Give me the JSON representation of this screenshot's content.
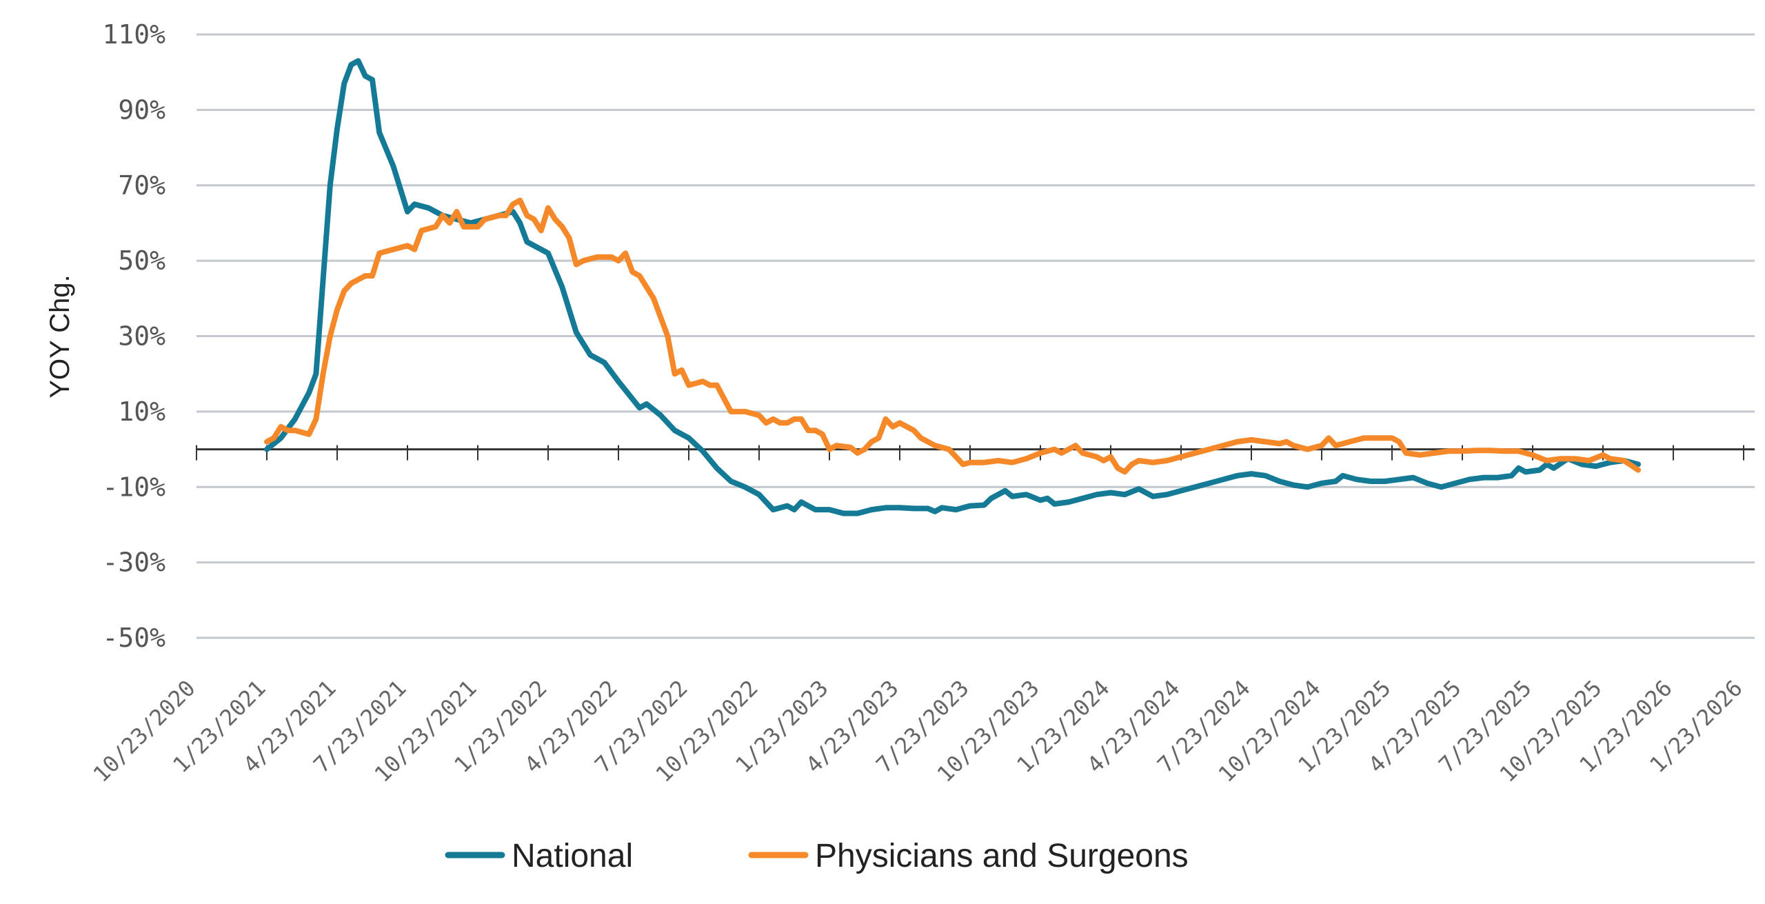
{
  "chart_data": {
    "type": "line",
    "ylabel": "YOY Chg.",
    "ylim": [
      -50,
      110
    ],
    "y_ticks": [
      110,
      90,
      70,
      50,
      30,
      10,
      -10,
      -30,
      -50
    ],
    "y_tick_labels": [
      "110%",
      "90%",
      "70%",
      "50%",
      "30%",
      "10%",
      "-10%",
      "-30%",
      "-50%"
    ],
    "x_tick_labels": [
      "10/23/2020",
      "1/23/2021",
      "4/23/2021",
      "7/23/2021",
      "10/23/2021",
      "1/23/2022",
      "4/23/2022",
      "7/23/2022",
      "10/23/2022",
      "1/23/2023",
      "4/23/2023",
      "7/23/2023",
      "10/23/2023",
      "1/23/2024",
      "4/23/2024",
      "7/23/2024",
      "10/23/2024",
      "1/23/2025",
      "4/23/2025",
      "7/23/2025",
      "10/23/2025",
      "1/23/2026",
      "1/23/2026"
    ],
    "zero_line": 0,
    "grid": true,
    "legend_position": "bottom",
    "series": [
      {
        "name": "National",
        "color": "#157a96",
        "values": [
          [
            1.0,
            0
          ],
          [
            1.2,
            3
          ],
          [
            1.4,
            8
          ],
          [
            1.6,
            15
          ],
          [
            1.7,
            20
          ],
          [
            1.8,
            45
          ],
          [
            1.9,
            70
          ],
          [
            2.0,
            85
          ],
          [
            2.1,
            97
          ],
          [
            2.2,
            102
          ],
          [
            2.3,
            103
          ],
          [
            2.4,
            99
          ],
          [
            2.5,
            98
          ],
          [
            2.6,
            84
          ],
          [
            2.8,
            75
          ],
          [
            3.0,
            63
          ],
          [
            3.1,
            65
          ],
          [
            3.3,
            64
          ],
          [
            3.5,
            62
          ],
          [
            3.7,
            61
          ],
          [
            3.9,
            60
          ],
          [
            4.1,
            61
          ],
          [
            4.3,
            62
          ],
          [
            4.5,
            63
          ],
          [
            4.6,
            60
          ],
          [
            4.7,
            55
          ],
          [
            4.9,
            53
          ],
          [
            5.0,
            52
          ],
          [
            5.2,
            43
          ],
          [
            5.4,
            31
          ],
          [
            5.6,
            25
          ],
          [
            5.8,
            23
          ],
          [
            6.0,
            18
          ],
          [
            6.3,
            11
          ],
          [
            6.4,
            12
          ],
          [
            6.6,
            9
          ],
          [
            6.8,
            5
          ],
          [
            7.0,
            3
          ],
          [
            7.2,
            -0.5
          ],
          [
            7.4,
            -5
          ],
          [
            7.6,
            -8.5
          ],
          [
            7.8,
            -10
          ],
          [
            8.0,
            -12
          ],
          [
            8.2,
            -16
          ],
          [
            8.4,
            -15
          ],
          [
            8.5,
            -16
          ],
          [
            8.6,
            -14
          ],
          [
            8.8,
            -16
          ],
          [
            9.0,
            -16
          ],
          [
            9.2,
            -17
          ],
          [
            9.4,
            -17
          ],
          [
            9.6,
            -16
          ],
          [
            9.8,
            -15.5
          ],
          [
            10.0,
            -15.5
          ],
          [
            10.2,
            -15.7
          ],
          [
            10.4,
            -15.7
          ],
          [
            10.5,
            -16.5
          ],
          [
            10.6,
            -15.5
          ],
          [
            10.8,
            -16
          ],
          [
            11.0,
            -15
          ],
          [
            11.2,
            -14.8
          ],
          [
            11.3,
            -13
          ],
          [
            11.5,
            -11
          ],
          [
            11.6,
            -12.5
          ],
          [
            11.8,
            -12
          ],
          [
            12.0,
            -13.5
          ],
          [
            12.1,
            -13
          ],
          [
            12.2,
            -14.5
          ],
          [
            12.4,
            -14
          ],
          [
            12.6,
            -13
          ],
          [
            12.8,
            -12
          ],
          [
            13.0,
            -11.5
          ],
          [
            13.2,
            -12
          ],
          [
            13.4,
            -10.5
          ],
          [
            13.6,
            -12.5
          ],
          [
            13.8,
            -12
          ],
          [
            14.0,
            -11
          ],
          [
            14.2,
            -10
          ],
          [
            14.4,
            -9
          ],
          [
            14.6,
            -8
          ],
          [
            14.8,
            -7
          ],
          [
            15.0,
            -6.5
          ],
          [
            15.2,
            -7
          ],
          [
            15.4,
            -8.5
          ],
          [
            15.6,
            -9.5
          ],
          [
            15.8,
            -10
          ],
          [
            16.0,
            -9
          ],
          [
            16.2,
            -8.5
          ],
          [
            16.3,
            -7
          ],
          [
            16.5,
            -8
          ],
          [
            16.7,
            -8.5
          ],
          [
            16.9,
            -8.5
          ],
          [
            17.1,
            -8
          ],
          [
            17.3,
            -7.5
          ],
          [
            17.5,
            -9
          ],
          [
            17.7,
            -10
          ],
          [
            17.9,
            -9
          ],
          [
            18.1,
            -8
          ],
          [
            18.3,
            -7.5
          ],
          [
            18.5,
            -7.5
          ],
          [
            18.7,
            -7
          ],
          [
            18.8,
            -5
          ],
          [
            18.9,
            -6
          ],
          [
            19.1,
            -5.5
          ],
          [
            19.2,
            -4
          ],
          [
            19.3,
            -5
          ],
          [
            19.5,
            -2.5
          ],
          [
            19.7,
            -4
          ],
          [
            19.9,
            -4.5
          ],
          [
            20.1,
            -3.5
          ],
          [
            20.3,
            -3
          ],
          [
            20.5,
            -4
          ]
        ]
      },
      {
        "name": "Physicians and Surgeons",
        "color": "#f5892a",
        "values": [
          [
            1.0,
            2
          ],
          [
            1.1,
            3
          ],
          [
            1.2,
            6
          ],
          [
            1.3,
            5
          ],
          [
            1.4,
            5
          ],
          [
            1.5,
            4.5
          ],
          [
            1.6,
            4
          ],
          [
            1.7,
            8
          ],
          [
            1.8,
            20
          ],
          [
            1.9,
            30
          ],
          [
            2.0,
            37
          ],
          [
            2.1,
            42
          ],
          [
            2.2,
            44
          ],
          [
            2.3,
            45
          ],
          [
            2.4,
            46
          ],
          [
            2.5,
            46
          ],
          [
            2.6,
            52
          ],
          [
            2.8,
            53
          ],
          [
            3.0,
            54
          ],
          [
            3.1,
            53
          ],
          [
            3.2,
            58
          ],
          [
            3.4,
            59
          ],
          [
            3.5,
            62
          ],
          [
            3.6,
            60
          ],
          [
            3.7,
            63
          ],
          [
            3.8,
            59
          ],
          [
            4.0,
            59
          ],
          [
            4.1,
            61
          ],
          [
            4.3,
            62
          ],
          [
            4.4,
            62
          ],
          [
            4.5,
            65
          ],
          [
            4.6,
            66
          ],
          [
            4.7,
            62
          ],
          [
            4.8,
            61
          ],
          [
            4.9,
            58
          ],
          [
            5.0,
            64
          ],
          [
            5.1,
            61
          ],
          [
            5.2,
            59
          ],
          [
            5.3,
            56
          ],
          [
            5.4,
            49
          ],
          [
            5.5,
            50
          ],
          [
            5.7,
            51
          ],
          [
            5.9,
            51
          ],
          [
            6.0,
            50
          ],
          [
            6.1,
            52
          ],
          [
            6.2,
            47
          ],
          [
            6.3,
            46
          ],
          [
            6.5,
            40
          ],
          [
            6.7,
            30
          ],
          [
            6.8,
            20
          ],
          [
            6.9,
            21
          ],
          [
            7.0,
            17
          ],
          [
            7.2,
            18
          ],
          [
            7.3,
            17
          ],
          [
            7.4,
            17
          ],
          [
            7.6,
            10
          ],
          [
            7.8,
            10
          ],
          [
            8.0,
            9
          ],
          [
            8.1,
            7
          ],
          [
            8.2,
            8
          ],
          [
            8.3,
            7
          ],
          [
            8.4,
            7
          ],
          [
            8.5,
            8
          ],
          [
            8.6,
            8
          ],
          [
            8.7,
            5
          ],
          [
            8.8,
            5
          ],
          [
            8.9,
            4
          ],
          [
            9.0,
            0
          ],
          [
            9.1,
            1
          ],
          [
            9.3,
            0.5
          ],
          [
            9.4,
            -1
          ],
          [
            9.5,
            0
          ],
          [
            9.6,
            2
          ],
          [
            9.7,
            3
          ],
          [
            9.8,
            8
          ],
          [
            9.9,
            6
          ],
          [
            10.0,
            7
          ],
          [
            10.1,
            6
          ],
          [
            10.2,
            5
          ],
          [
            10.3,
            3
          ],
          [
            10.4,
            2
          ],
          [
            10.5,
            1
          ],
          [
            10.7,
            0
          ],
          [
            10.8,
            -2
          ],
          [
            10.9,
            -4
          ],
          [
            11.0,
            -3.5
          ],
          [
            11.2,
            -3.5
          ],
          [
            11.4,
            -3
          ],
          [
            11.6,
            -3.5
          ],
          [
            11.8,
            -2.5
          ],
          [
            12.0,
            -1
          ],
          [
            12.2,
            0
          ],
          [
            12.3,
            -1
          ],
          [
            12.4,
            0
          ],
          [
            12.5,
            1
          ],
          [
            12.6,
            -1
          ],
          [
            12.8,
            -2
          ],
          [
            12.9,
            -3
          ],
          [
            13.0,
            -2
          ],
          [
            13.1,
            -5
          ],
          [
            13.2,
            -6
          ],
          [
            13.3,
            -4
          ],
          [
            13.4,
            -3
          ],
          [
            13.6,
            -3.5
          ],
          [
            13.8,
            -3
          ],
          [
            14.0,
            -2
          ],
          [
            14.2,
            -1
          ],
          [
            14.4,
            0
          ],
          [
            14.6,
            1
          ],
          [
            14.8,
            2
          ],
          [
            15.0,
            2.5
          ],
          [
            15.2,
            2
          ],
          [
            15.4,
            1.5
          ],
          [
            15.5,
            2
          ],
          [
            15.6,
            1
          ],
          [
            15.8,
            0
          ],
          [
            16.0,
            1
          ],
          [
            16.1,
            3
          ],
          [
            16.2,
            1
          ],
          [
            16.4,
            2
          ],
          [
            16.6,
            3
          ],
          [
            16.8,
            3
          ],
          [
            17.0,
            3
          ],
          [
            17.1,
            2
          ],
          [
            17.2,
            -1
          ],
          [
            17.4,
            -1.5
          ],
          [
            17.6,
            -1
          ],
          [
            17.8,
            -0.5
          ],
          [
            18.0,
            -0.5
          ],
          [
            18.2,
            -0.3
          ],
          [
            18.4,
            -0.3
          ],
          [
            18.6,
            -0.5
          ],
          [
            18.8,
            -0.5
          ],
          [
            19.0,
            -1.5
          ],
          [
            19.2,
            -3
          ],
          [
            19.4,
            -2.5
          ],
          [
            19.6,
            -2.5
          ],
          [
            19.8,
            -3
          ],
          [
            20.0,
            -1.5
          ],
          [
            20.1,
            -2.5
          ],
          [
            20.3,
            -3
          ],
          [
            20.5,
            -5.5
          ]
        ]
      }
    ]
  }
}
